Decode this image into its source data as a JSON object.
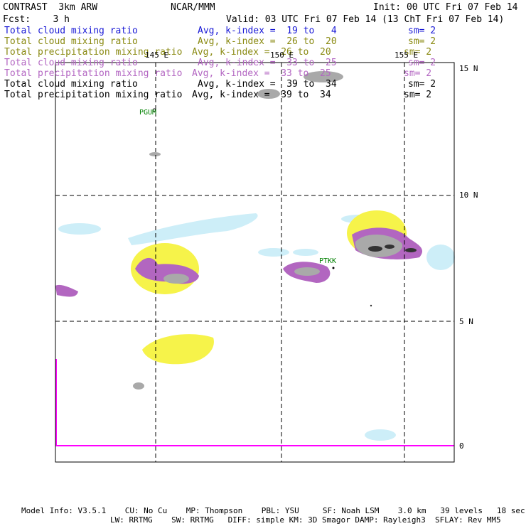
{
  "header": {
    "title": "CONTRAST  3km ARW",
    "org": "NCAR/MMM",
    "init": "Init: 00 UTC Fri 07 Feb 14",
    "fcst": "Fcst:    3 h",
    "valid": "Valid: 03 UTC Fri 07 Feb 14 (13 ChT Fri 07 Feb 14)"
  },
  "legend": [
    {
      "field": "Total cloud mixing ratio",
      "avg": "Avg, k-index =  19 to   4",
      "sm": "sm= 2",
      "color": "#1a1ad6"
    },
    {
      "field": "Total cloud mixing ratio",
      "avg": "Avg, k-index =  26 to  20",
      "sm": "sm= 2",
      "color": "#8a8a12"
    },
    {
      "field": "Total precipitation mixing ratio",
      "avg": "Avg, k-index =  26 to  20",
      "sm": "sm= 2",
      "color": "#8a8a12"
    },
    {
      "field": "Total cloud mixing ratio",
      "avg": "Avg, k-index =  33 to  25",
      "sm": "sm= 2",
      "color": "#b366c2"
    },
    {
      "field": "Total precipitation mixing ratio",
      "avg": "Avg, k-index =  33 to  25",
      "sm": "sm= 2",
      "color": "#b366c2"
    },
    {
      "field": "Total cloud mixing ratio",
      "avg": "Avg, k-index =  39 to  34",
      "sm": "sm= 2",
      "color": "#000000"
    },
    {
      "field": "Total precipitation mixing ratio",
      "avg": "Avg, k-index =  39 to  34",
      "sm": "sm= 2",
      "color": "#000000"
    }
  ],
  "map": {
    "lon_labels": [
      "145 E",
      "150 E",
      "155 E"
    ],
    "lat_labels": [
      "15 N",
      "10 N",
      "5 N",
      "0"
    ],
    "stations": [
      "PGUM",
      "PTKK"
    ],
    "colors": {
      "light_blue": "#cdeef8",
      "yellow": "#f6f34a",
      "violet": "#b266c0",
      "gray": "#a9a9a9",
      "dark": "#333333",
      "magenta": "#ff00ff"
    }
  },
  "footer": {
    "line1": "Model Info: V3.5.1    CU: No Cu    MP: Thompson    PBL: YSU     SF: Noah LSM    3.0 km   39 levels   18 sec",
    "line2": "LW: RRTMG    SW: RRTMG   DIFF: simple KM: 3D Smagor DAMP: Rayleigh3  SFLAY: Rev MM5"
  }
}
